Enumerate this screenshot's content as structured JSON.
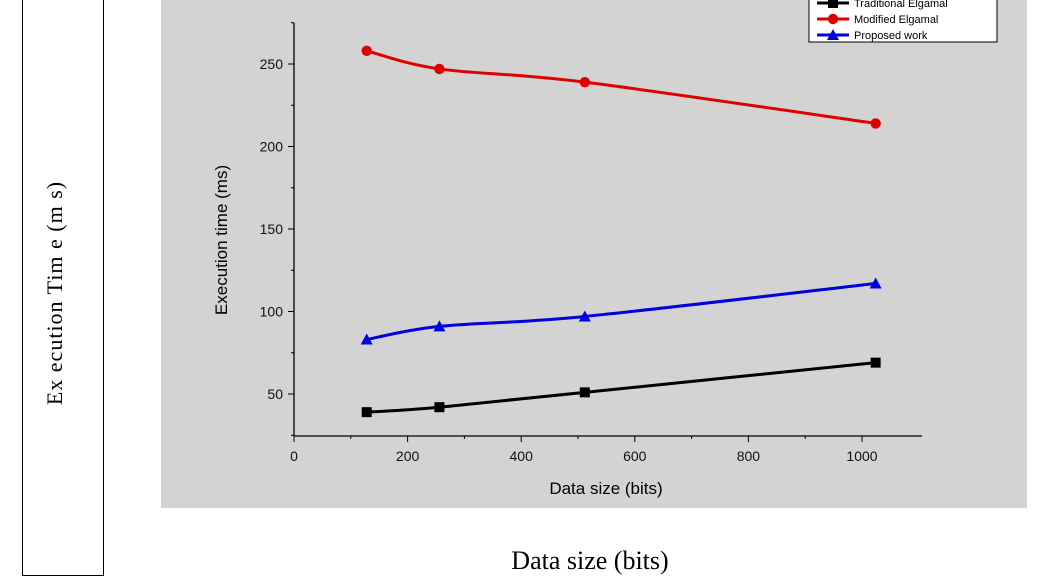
{
  "outer": {
    "ylabel": "Ex ecution Tim e (m s)",
    "xlabel": "Data size (bits)"
  },
  "chart_data": {
    "type": "line",
    "xlabel": "Data size (bits)",
    "ylabel": "Execution time (ms)",
    "xlim": [
      0,
      1100
    ],
    "ylim": [
      25,
      275
    ],
    "xticks": [
      0,
      200,
      400,
      600,
      800,
      1000
    ],
    "yticks": [
      50,
      100,
      150,
      200,
      250
    ],
    "x": [
      128,
      256,
      512,
      1024
    ],
    "legend_position": "top-right",
    "grid": false,
    "series": [
      {
        "name": "Traditional Elgamal",
        "color": "#000000",
        "marker": "square",
        "values": [
          39,
          42,
          51,
          69
        ]
      },
      {
        "name": "Modified Elgamal",
        "color": "#e00000",
        "marker": "circle",
        "values": [
          258,
          247,
          239,
          214
        ]
      },
      {
        "name": "Proposed work",
        "color": "#0000e0",
        "marker": "triangle",
        "values": [
          83,
          91,
          97,
          117
        ]
      }
    ]
  }
}
